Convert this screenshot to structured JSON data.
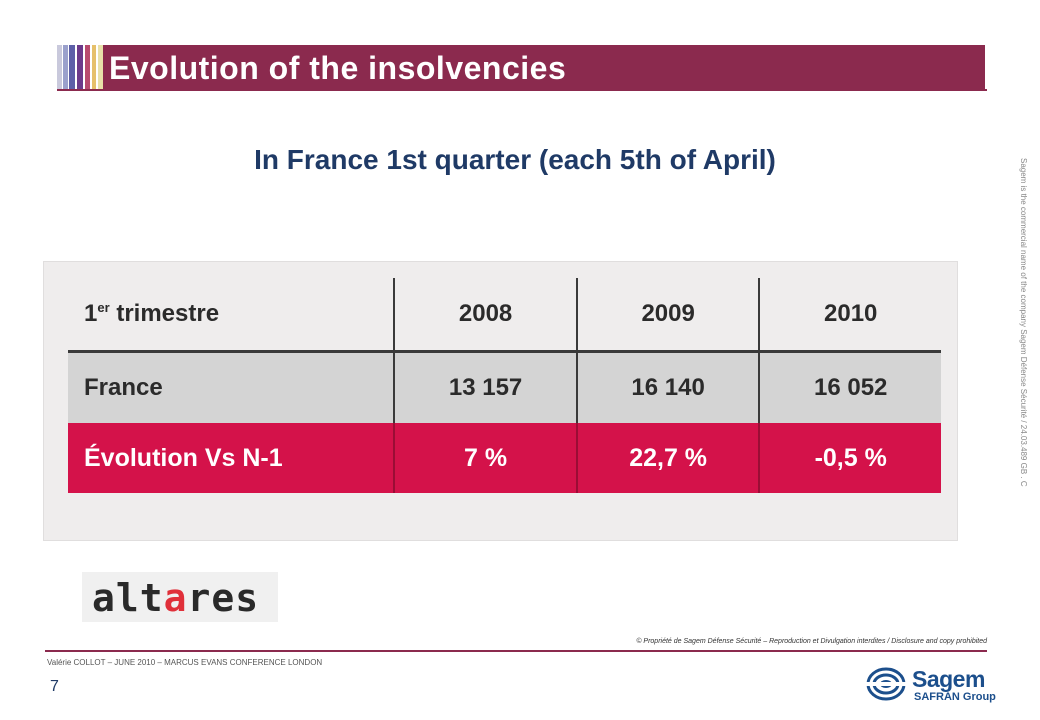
{
  "slide": {
    "title": "Evolution of the insolvencies",
    "subtitle": "In France 1st quarter (each 5th of April)",
    "side_note": "Sagem is the commercial name of the company Sagem Défense Sécurité / 24.03.489 GB . C",
    "page_number": "7"
  },
  "table": {
    "header": {
      "label_main": "1",
      "label_sup": "er",
      "label_rest": " trimestre",
      "years": [
        "2008",
        "2009",
        "2010"
      ]
    },
    "rows": [
      {
        "label": "France",
        "values": [
          "13 157",
          "16 140",
          "16 052"
        ]
      },
      {
        "label": "Évolution Vs N-1",
        "values": [
          "7 %",
          "22,7 %",
          "-0,5 %"
        ]
      }
    ]
  },
  "logo": {
    "text_a": "alt",
    "text_b": "a",
    "text_c": "res",
    "accent_color": "#e0303a"
  },
  "footer": {
    "copyright": "© Propriété de Sagem Défense Sécurité – Reproduction et Divulgation interdites / Disclosure and copy prohibited",
    "presenter": "Valérie COLLOT – JUNE 2010 – MARCUS EVANS CONFERENCE LONDON",
    "brand_name": "Sagem",
    "brand_group": "SAFRAN Group"
  },
  "colors": {
    "title_bar": "#8b2a4e",
    "subtitle": "#1f3a66",
    "evolution_row": "#d4124a",
    "france_row": "#d4d4d4"
  }
}
